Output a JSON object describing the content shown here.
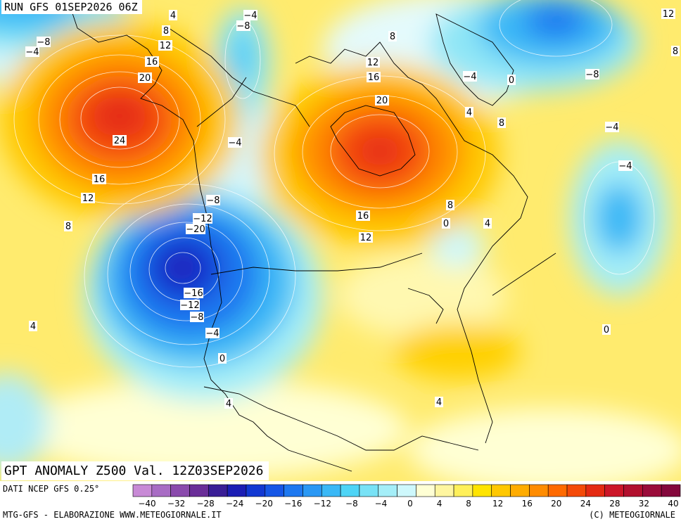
{
  "header": {
    "run_title": "RUN GFS 01SEP2026 06Z"
  },
  "map": {
    "title": "GPT ANOMALY Z500 Val. 12Z03SEP2026",
    "contour_labels": [
      {
        "value": "4"
      },
      {
        "value": "8"
      },
      {
        "value": "12"
      },
      {
        "value": "16"
      },
      {
        "value": "20"
      },
      {
        "value": "24"
      },
      {
        "value": "16"
      },
      {
        "value": "12"
      },
      {
        "value": "8"
      },
      {
        "value": "-8"
      },
      {
        "value": "-4"
      },
      {
        "value": "-4"
      },
      {
        "value": "-8"
      },
      {
        "value": "-4"
      },
      {
        "value": "-8"
      },
      {
        "value": "-12"
      },
      {
        "value": "-20"
      },
      {
        "value": "-16"
      },
      {
        "value": "-12"
      },
      {
        "value": "-8"
      },
      {
        "value": "-4"
      },
      {
        "value": "0"
      },
      {
        "value": "4"
      },
      {
        "value": "8"
      },
      {
        "value": "12"
      },
      {
        "value": "16"
      },
      {
        "value": "20"
      },
      {
        "value": "16"
      },
      {
        "value": "12"
      },
      {
        "value": "8"
      },
      {
        "value": "0"
      },
      {
        "value": "4"
      },
      {
        "value": "4"
      },
      {
        "value": "-4"
      },
      {
        "value": "0"
      },
      {
        "value": "8"
      },
      {
        "value": "12"
      },
      {
        "value": "8"
      },
      {
        "value": "-8"
      },
      {
        "value": "-4"
      },
      {
        "value": "-4"
      },
      {
        "value": "0"
      },
      {
        "value": "4"
      },
      {
        "value": "4"
      }
    ]
  },
  "legend": {
    "source": "DATI NCEP GFS 0.25°",
    "colors": [
      "#c88ad6",
      "#a86cc4",
      "#8a4aac",
      "#6a2e98",
      "#3a1e96",
      "#1c1eb4",
      "#1238d2",
      "#1656e6",
      "#1e78f0",
      "#2a98f4",
      "#3ab8f6",
      "#4ed4f6",
      "#78e2f6",
      "#a4eef8",
      "#cef8fc",
      "#ffffd4",
      "#fff6a0",
      "#fff05a",
      "#ffe400",
      "#ffc800",
      "#ffac00",
      "#ff8c00",
      "#ff6a00",
      "#f44a08",
      "#e42a12",
      "#cc1628",
      "#b2102e",
      "#9a0c3a",
      "#84083c"
    ],
    "ticks": [
      "-40",
      "-32",
      "-28",
      "-24",
      "-20",
      "-16",
      "-12",
      "-8",
      "-4",
      "0",
      "4",
      "8",
      "12",
      "16",
      "20",
      "24",
      "28",
      "32",
      "40"
    ]
  },
  "footer": {
    "left": "MTG-GFS - ELABORAZIONE WWW.METEOGIORNALE.IT",
    "right": "(C) METEOGIORNALE"
  }
}
